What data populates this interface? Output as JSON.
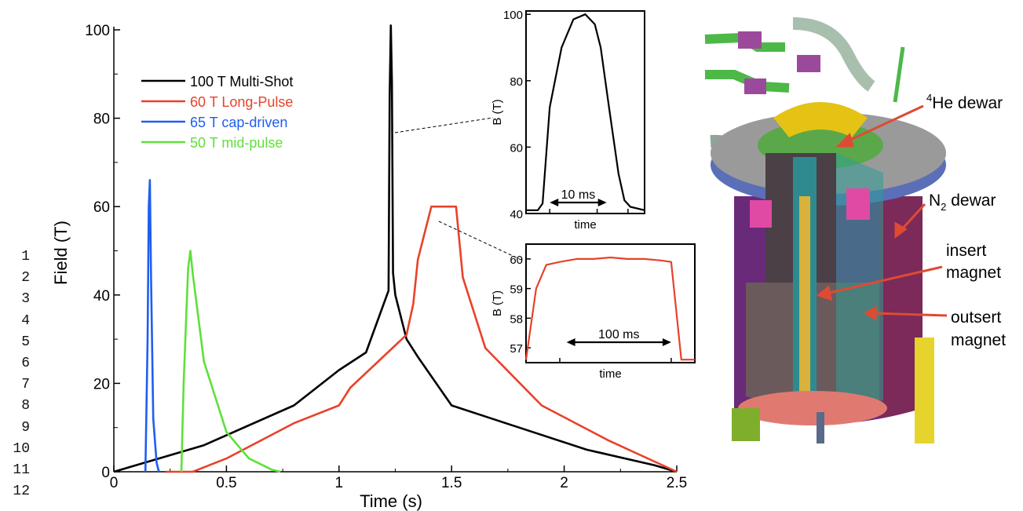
{
  "colors": {
    "multishot": "#000000",
    "longpulse": "#e8422a",
    "capdriven": "#1f5ef0",
    "midpulse": "#5fe03a",
    "axis": "#000000"
  },
  "line_numbers": [
    "1",
    "2",
    "3",
    "4",
    "5",
    "6",
    "7",
    "8",
    "9",
    "10",
    "11",
    "12"
  ],
  "chart_data": [
    {
      "type": "line",
      "xlabel": "Time (s)",
      "ylabel": "Field (T)",
      "xlim": [
        0,
        2.5
      ],
      "ylim": [
        0,
        100
      ],
      "xticks": [
        "0",
        "0.5",
        "1",
        "1.5",
        "2",
        "2.5"
      ],
      "yticks": [
        "0",
        "20",
        "40",
        "60",
        "80",
        "100"
      ],
      "legend_position": "upper-left",
      "series": [
        {
          "name": "100 T Multi-Shot",
          "color": "#000000",
          "x": [
            0,
            0.4,
            0.8,
            1.0,
            1.12,
            1.22,
            1.225,
            1.23,
            1.235,
            1.24,
            1.25,
            1.3,
            1.35,
            1.5,
            1.8,
            2.1,
            2.4,
            2.5
          ],
          "y": [
            0,
            6,
            15,
            23,
            27,
            41,
            85,
            101,
            88,
            45,
            40,
            30,
            26,
            15,
            10,
            5,
            1.5,
            0
          ]
        },
        {
          "name": "60 T Long-Pulse",
          "color": "#e8422a",
          "x": [
            0.23,
            0.35,
            0.5,
            0.8,
            1.0,
            1.05,
            1.3,
            1.33,
            1.35,
            1.41,
            1.45,
            1.52,
            1.55,
            1.65,
            1.9,
            2.2,
            2.5
          ],
          "y": [
            0,
            0,
            3,
            11,
            15,
            19,
            31,
            38,
            48,
            60,
            60,
            60,
            44,
            28,
            15,
            7,
            0
          ]
        },
        {
          "name": "65 T cap-driven",
          "color": "#1f5ef0",
          "x": [
            0.14,
            0.15,
            0.155,
            0.16,
            0.165,
            0.175,
            0.19,
            0.2
          ],
          "y": [
            0,
            30,
            60,
            66,
            45,
            12,
            2,
            0
          ]
        },
        {
          "name": "50 T mid-pulse",
          "color": "#5fe03a",
          "x": [
            0.3,
            0.31,
            0.33,
            0.34,
            0.35,
            0.4,
            0.5,
            0.6,
            0.7,
            0.74
          ],
          "y": [
            0,
            20,
            46,
            50,
            45,
            25,
            9,
            3,
            0.5,
            0
          ]
        }
      ]
    },
    {
      "type": "line",
      "xlabel": "time",
      "ylabel": "B (T)",
      "ylim": [
        40,
        101
      ],
      "yticks": [
        "40",
        "60",
        "80",
        "100"
      ],
      "annotation": "10 ms",
      "series": [
        {
          "color": "#000000",
          "x": [
            0,
            0.1,
            0.14,
            0.2,
            0.3,
            0.4,
            0.5,
            0.58,
            0.63,
            0.7,
            0.78,
            0.83,
            0.88,
            1.0
          ],
          "y": [
            41,
            41,
            43,
            72,
            90,
            98.5,
            100,
            97,
            90,
            72,
            52,
            44,
            42,
            41
          ]
        }
      ]
    },
    {
      "type": "line",
      "xlabel": "time",
      "ylabel": "B (T)",
      "ylim": [
        56.5,
        60.5
      ],
      "yticks": [
        "57",
        "58",
        "59",
        "60"
      ],
      "annotation": "100 ms",
      "series": [
        {
          "color": "#e8422a",
          "x": [
            0,
            0.06,
            0.12,
            0.2,
            0.3,
            0.4,
            0.5,
            0.6,
            0.7,
            0.8,
            0.86,
            0.92,
            1.0
          ],
          "y": [
            56.6,
            59.0,
            59.8,
            59.9,
            60.0,
            60.0,
            60.05,
            60.0,
            60.0,
            59.95,
            59.9,
            56.6,
            56.6
          ]
        }
      ]
    }
  ],
  "cutaway": {
    "labels": {
      "he_sup": "4",
      "he_text": "He dewar",
      "n2_main": "N",
      "n2_sub": "2",
      "n2_text": " dewar",
      "insert_1": "insert",
      "insert_2": "magnet",
      "outsert_1": "outsert",
      "outsert_2": "magnet"
    }
  }
}
